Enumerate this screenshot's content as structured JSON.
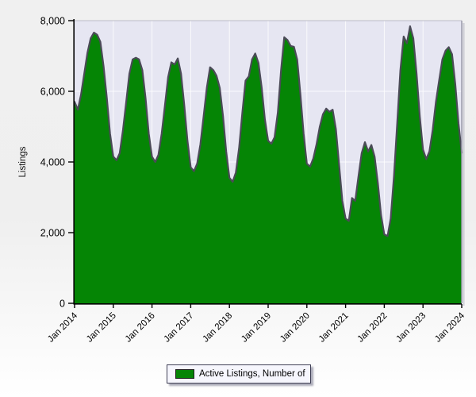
{
  "chart_data": {
    "type": "area",
    "title": "",
    "ylabel": "Listings",
    "xlabel": "",
    "legend": [
      "Active Listings, Number of"
    ],
    "legend_position": "bottom-center",
    "grid": true,
    "ylim": [
      0,
      8000
    ],
    "y_ticks": [
      0,
      2000,
      4000,
      6000,
      8000
    ],
    "y_ticklabels": [
      "0",
      "2,000",
      "4,000",
      "6,000",
      "8,000"
    ],
    "x_ticklabels": [
      "Jan 2014",
      "Jan 2015",
      "Jan 2016",
      "Jan 2017",
      "Jan 2018",
      "Jan 2019",
      "Jan 2020",
      "Jan 2021",
      "Jan 2022",
      "Jan 2023",
      "Jan 2024"
    ],
    "x_start": "Jan 2014",
    "x_end": "Jan 2024",
    "x_interval": "monthly",
    "series": [
      {
        "name": "Active Listings, Number of",
        "fill_color": "#058505",
        "line_color": "#4b4b57",
        "values": [
          5700,
          5480,
          5900,
          6500,
          7100,
          7500,
          7660,
          7600,
          7400,
          6700,
          5800,
          4800,
          4150,
          4050,
          4250,
          4900,
          5700,
          6500,
          6900,
          6950,
          6900,
          6600,
          5800,
          4800,
          4150,
          4000,
          4200,
          4800,
          5600,
          6400,
          6820,
          6760,
          6930,
          6500,
          5600,
          4600,
          3850,
          3740,
          3950,
          4500,
          5300,
          6100,
          6680,
          6600,
          6440,
          6100,
          5300,
          4300,
          3550,
          3440,
          3700,
          4400,
          5400,
          6300,
          6420,
          6900,
          7070,
          6800,
          6100,
          5200,
          4600,
          4520,
          4700,
          5400,
          6600,
          7530,
          7450,
          7280,
          7260,
          6900,
          5900,
          4800,
          3950,
          3870,
          4100,
          4500,
          5000,
          5350,
          5510,
          5420,
          5480,
          4930,
          3900,
          2900,
          2400,
          2330,
          2980,
          2900,
          3600,
          4250,
          4560,
          4300,
          4480,
          4150,
          3400,
          2500,
          1950,
          1900,
          2400,
          3600,
          5100,
          6600,
          7550,
          7360,
          7840,
          7500,
          6500,
          5300,
          4350,
          4080,
          4300,
          4900,
          5700,
          6300,
          6900,
          7150,
          7250,
          7050,
          6200,
          5100,
          4260
        ]
      }
    ],
    "colors": {
      "plot_bg": "#e6e6f2",
      "grid": "#ffffff",
      "axis": "#000000",
      "plot_border": "#bcbcc8",
      "plot_shadow": "#9a9aaa",
      "legend_bg": "#f6f6fd",
      "legend_border": "#3f3f55",
      "page_bg_top": "#f0f0f0",
      "page_bg_bottom": "#ffffff"
    }
  }
}
